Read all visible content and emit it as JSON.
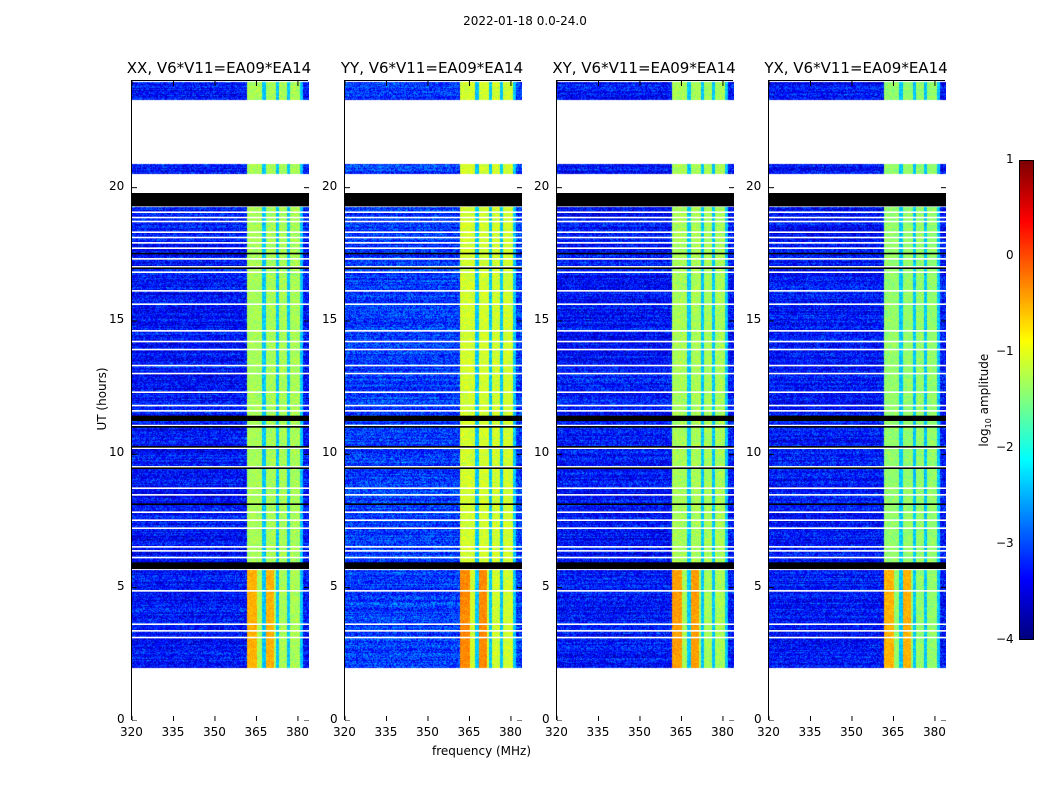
{
  "chart_data": {
    "type": "heatmap",
    "suptitle": "2022-01-18 0.0-24.0",
    "xlabel": "frequency (MHz)",
    "ylabel": "UT (hours)",
    "xlim": [
      320,
      384
    ],
    "ylim": [
      0,
      24
    ],
    "xticks": [
      "320",
      "335",
      "350",
      "365",
      "380"
    ],
    "xtick_values": [
      320,
      335,
      350,
      365,
      380
    ],
    "yticks": [
      "0",
      "5",
      "10",
      "15",
      "20"
    ],
    "ytick_values": [
      0,
      5,
      10,
      15,
      20
    ],
    "colorbar": {
      "label_main": "log",
      "label_sub": "10",
      "label_rest": " amplitude",
      "range": [
        -4,
        1
      ],
      "ticks": [
        "1",
        "0",
        "−1",
        "−2",
        "−3",
        "−4"
      ],
      "tick_values": [
        1,
        0,
        -1,
        -2,
        -3,
        -4
      ],
      "colormap": "jet"
    },
    "panels": [
      {
        "title": "XX, V6*V11=EA09*EA14",
        "background_level": -3.3,
        "band_level": -1.3,
        "peak_level": -0.5
      },
      {
        "title": "YY, V6*V11=EA09*EA14",
        "background_level": -3.1,
        "band_level": -1.1,
        "peak_level": -0.3
      },
      {
        "title": "XY, V6*V11=EA09*EA14",
        "background_level": -3.3,
        "band_level": -1.3,
        "peak_level": -0.4
      },
      {
        "title": "YX, V6*V11=EA09*EA14",
        "background_level": -3.3,
        "band_level": -1.4,
        "peak_level": -0.5
      }
    ],
    "bright_band_mhz": [
      361.5,
      381.5
    ],
    "band_notch_mhz": [
      367.5,
      372.5,
      376.5,
      381
    ],
    "peak_hours": [
      2.0,
      5.7
    ],
    "segments_hours": [
      {
        "start": 0,
        "end": 2.0,
        "kind": "no-data"
      },
      {
        "start": 2.0,
        "end": 5.7,
        "kind": "data"
      },
      {
        "start": 5.7,
        "end": 5.95,
        "kind": "flagged"
      },
      {
        "start": 5.95,
        "end": 19.3,
        "kind": "data"
      },
      {
        "start": 11.25,
        "end": 11.45,
        "kind": "flagged"
      },
      {
        "start": 19.3,
        "end": 19.8,
        "kind": "flagged"
      },
      {
        "start": 19.8,
        "end": 20.55,
        "kind": "no-data"
      },
      {
        "start": 20.55,
        "end": 20.9,
        "kind": "data"
      },
      {
        "start": 20.9,
        "end": 23.3,
        "kind": "no-data"
      },
      {
        "start": 23.3,
        "end": 24,
        "kind": "data"
      }
    ],
    "gap_lines_hours": [
      3.1,
      3.35,
      3.6,
      4.85,
      6.1,
      6.35,
      6.5,
      7.2,
      7.5,
      7.8,
      8.45,
      8.7,
      9.5,
      10.2,
      11.05,
      11.6,
      11.8,
      12.3,
      13.0,
      13.3,
      13.9,
      14.2,
      14.6,
      15.6,
      16.1,
      16.8,
      17.0,
      17.3,
      17.7,
      17.9,
      18.1,
      18.3,
      18.7,
      18.85,
      19.05
    ],
    "flag_lines_hours": [
      9.45,
      10.25,
      11.0,
      8.1,
      16.95,
      17.5
    ]
  }
}
